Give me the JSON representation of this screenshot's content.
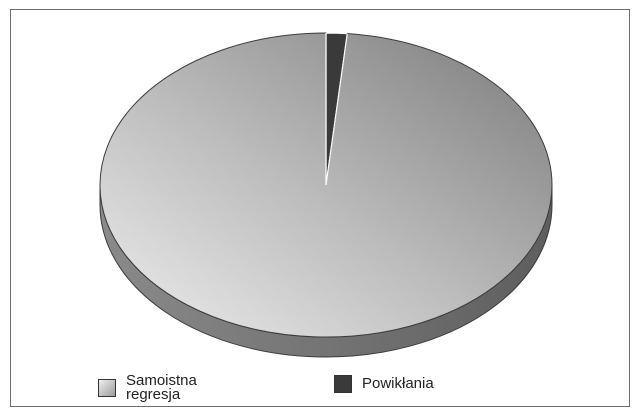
{
  "chart_data": {
    "type": "pie",
    "categories": [
      "Samoistna regresja",
      "Powikłania"
    ],
    "values": [
      98.5,
      1.5
    ],
    "colors": [
      "#b4b4b4",
      "#3a3a3a"
    ],
    "style": "3d",
    "legend_position": "bottom",
    "legend": [
      "Samoistna regresja",
      "Powikłania"
    ]
  }
}
